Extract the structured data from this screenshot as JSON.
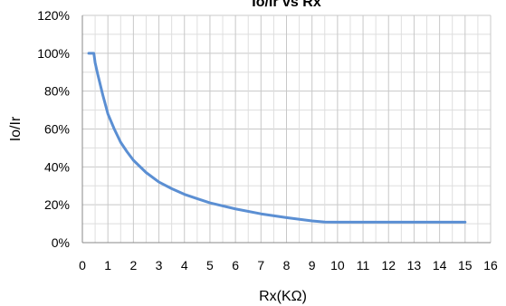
{
  "chart_data": {
    "type": "line",
    "title": "Io/Ir  vs  Rx",
    "xlabel": "Rx(KΩ)",
    "ylabel": "Io/Ir",
    "xlim": [
      0,
      16
    ],
    "ylim": [
      0,
      120
    ],
    "x_ticks": [
      0,
      1,
      2,
      3,
      4,
      5,
      6,
      7,
      8,
      9,
      10,
      11,
      12,
      13,
      14,
      15,
      16
    ],
    "y_ticks": [
      0,
      20,
      40,
      60,
      80,
      100,
      120
    ],
    "y_tick_labels": [
      "0%",
      "20%",
      "40%",
      "60%",
      "80%",
      "100%",
      "120%"
    ],
    "grid": true,
    "line_color": "#5b8fd3",
    "series": [
      {
        "x": [
          0.25,
          0.45,
          0.5,
          0.6,
          0.8,
          1.0,
          1.25,
          1.5,
          1.75,
          2.0,
          2.5,
          3.0,
          3.5,
          4.0,
          4.5,
          5.0,
          6.0,
          7.0,
          8.0,
          9.0,
          9.5,
          10.0,
          11.0,
          12.0,
          13.0,
          14.0,
          15.0
        ],
        "y": [
          100,
          100,
          95,
          89,
          78,
          68,
          60,
          53,
          48,
          43.5,
          37,
          32,
          28.5,
          25.5,
          23.2,
          21,
          17.8,
          15.2,
          13.2,
          11.5,
          10.9,
          10.8,
          10.8,
          10.8,
          10.8,
          10.8,
          10.8
        ]
      }
    ]
  }
}
